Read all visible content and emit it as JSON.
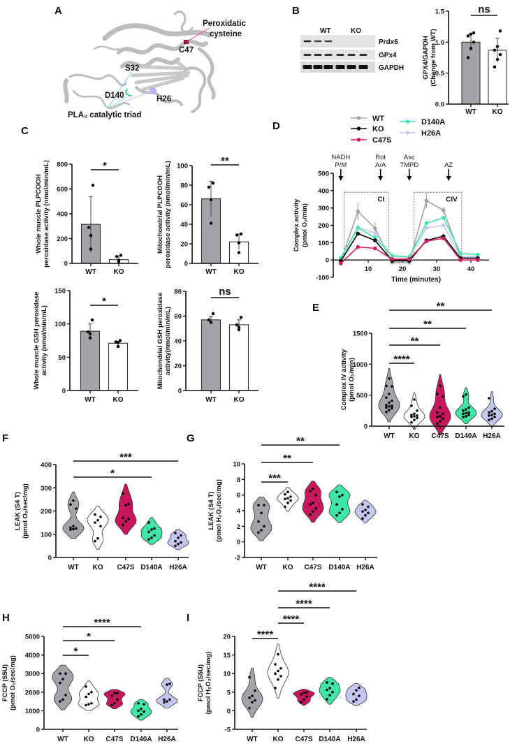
{
  "panel_labels": {
    "A": "A",
    "B": "B",
    "C": "C",
    "D": "D",
    "E": "E",
    "F": "F",
    "G": "G",
    "H": "H",
    "I": "I"
  },
  "colors": {
    "WT": "#a3a3a8",
    "KO": "#ffffff",
    "C47S": "#c8175d",
    "D140A": "#3fe6a5",
    "H26A": "#c6c6f4",
    "KO_line": "#000000"
  },
  "structure": {
    "peroxidatic_1": "Peroxidatic",
    "peroxidatic_2": "cysteine",
    "c47": "C47",
    "s32": "S32",
    "d140": "D140",
    "h26": "H26",
    "triad": "PLA₂ catalytic triad"
  },
  "blot": {
    "groups": [
      "WT",
      "KO"
    ],
    "rows": [
      "Prdx6",
      "GPx4",
      "GAPDH"
    ]
  },
  "chart_data": [
    {
      "id": "B",
      "type": "bar",
      "categories": [
        "WT",
        "KO"
      ],
      "values": [
        1.0,
        0.87
      ],
      "sd": [
        0.14,
        0.19
      ],
      "points": [
        [
          0.75,
          0.9,
          1.0,
          1.1,
          1.13,
          1.15
        ],
        [
          0.6,
          0.72,
          0.8,
          0.87,
          0.93,
          1.18
        ]
      ],
      "ylim": [
        0,
        1.5
      ],
      "yticks": [
        0,
        0.5,
        1.0,
        1.5
      ],
      "tick_labels": [
        "0.0",
        "0.5",
        "1.0",
        "1.5"
      ],
      "ylabel": [
        "GPX4/GAPDH",
        "(Change from WT)"
      ],
      "sig": [
        {
          "a": 0,
          "b": 1,
          "label": "ns"
        }
      ]
    },
    {
      "id": "C1",
      "type": "bar",
      "categories": [
        "WT",
        "KO"
      ],
      "values": [
        315,
        30
      ],
      "sd": [
        225,
        30
      ],
      "points": [
        [
          115,
          225,
          290,
          630
        ],
        [
          15,
          25,
          55,
          65
        ]
      ],
      "ylim": [
        0,
        800
      ],
      "yticks": [
        0,
        200,
        400,
        600,
        800
      ],
      "tick_labels": [
        "0",
        "200",
        "400",
        "600",
        "800"
      ],
      "ylabel": [
        "Whole muscle PLPCOOH",
        "peroxidase activity (nmol/min/mL)"
      ],
      "sig": [
        {
          "a": 0,
          "b": 1,
          "label": "*"
        }
      ]
    },
    {
      "id": "C2",
      "type": "bar",
      "categories": [
        "WT",
        "KO"
      ],
      "values": [
        66,
        22
      ],
      "sd": [
        18,
        8
      ],
      "points": [
        [
          41,
          65,
          78,
          82
        ],
        [
          11,
          21,
          29,
          30
        ]
      ],
      "ylim": [
        0,
        100
      ],
      "yticks": [
        0,
        20,
        40,
        60,
        80,
        100
      ],
      "tick_labels": [
        "0",
        "20",
        "40",
        "60",
        "80",
        "100"
      ],
      "ylabel": [
        "Mitochondrial PLPCOOH",
        "peroxidase activity (nmol/min/mL)"
      ],
      "sig": [
        {
          "a": 0,
          "b": 1,
          "label": "**"
        }
      ]
    },
    {
      "id": "C3",
      "type": "bar",
      "categories": [
        "WT",
        "KO"
      ],
      "values": [
        89,
        71
      ],
      "sd": [
        11,
        3
      ],
      "points": [
        [
          79,
          85,
          88,
          106
        ],
        [
          66,
          72,
          73,
          75
        ]
      ],
      "ylim": [
        0,
        150
      ],
      "yticks": [
        0,
        50,
        100,
        150
      ],
      "tick_labels": [
        "0",
        "50",
        "100",
        "150"
      ],
      "ylabel": [
        "Whole muscle GSH peroxidase",
        "activity (nmol/min/mL)"
      ],
      "sig": [
        {
          "a": 0,
          "b": 1,
          "label": "*"
        }
      ]
    },
    {
      "id": "C4",
      "type": "bar",
      "categories": [
        "WT",
        "KO"
      ],
      "values": [
        57,
        53
      ],
      "sd": [
        3,
        4
      ],
      "points": [
        [
          55,
          55,
          57,
          62
        ],
        [
          49,
          51,
          53,
          59
        ]
      ],
      "ylim": [
        0,
        80
      ],
      "yticks": [
        0,
        20,
        40,
        60,
        80
      ],
      "tick_labels": [
        "0",
        "20",
        "40",
        "60",
        "80"
      ],
      "ylabel": [
        "Mitochondrial GSH peroxidase",
        "activity(nmol/min/mL)"
      ],
      "sig": [
        {
          "a": 0,
          "b": 1,
          "label": "ns"
        }
      ]
    },
    {
      "id": "D",
      "type": "line",
      "xlabel": "Time (minutes)",
      "ylabel": [
        "Complex activity",
        "(pmol O₂/min)"
      ],
      "xlim": [
        0,
        45
      ],
      "ylim": [
        -100,
        500
      ],
      "xticks": [
        10,
        20,
        30,
        40
      ],
      "xtick_labels": [
        "10",
        "20",
        "30",
        "40"
      ],
      "yticks": [
        -100,
        0,
        100,
        200,
        300,
        400,
        500
      ],
      "ytick_labels": [
        "-100",
        "0",
        "100",
        "200",
        "300",
        "400",
        "500"
      ],
      "x": [
        2,
        7,
        12,
        17,
        22,
        27,
        32,
        37,
        42
      ],
      "series": [
        {
          "name": "WT",
          "color": "#a3a3a8",
          "values": [
            -5,
            280,
            183,
            -15,
            -15,
            342,
            287,
            15,
            15
          ],
          "err": [
            0,
            50,
            35,
            0,
            0,
            45,
            20,
            0,
            0
          ]
        },
        {
          "name": "KO",
          "color": "#000000",
          "values": [
            -5,
            152,
            113,
            -5,
            -5,
            113,
            137,
            10,
            10
          ],
          "err": [
            0,
            10,
            8,
            0,
            0,
            5,
            5,
            0,
            0
          ]
        },
        {
          "name": "C47S",
          "color": "#d01a64",
          "values": [
            -20,
            75,
            67,
            5,
            5,
            108,
            125,
            0,
            0
          ],
          "err": [
            0,
            0,
            0,
            0,
            0,
            0,
            0,
            0,
            0
          ]
        },
        {
          "name": "D140A",
          "color": "#3fe6a5",
          "values": [
            10,
            185,
            130,
            25,
            18,
            212,
            243,
            38,
            30
          ],
          "err": [
            0,
            0,
            0,
            0,
            0,
            0,
            0,
            0,
            0
          ]
        },
        {
          "name": "H26A",
          "color": "#c6c6f4",
          "values": [
            15,
            190,
            155,
            20,
            15,
            185,
            200,
            20,
            20
          ],
          "err": [
            0,
            0,
            0,
            0,
            0,
            0,
            0,
            0,
            0
          ]
        }
      ],
      "injections": [
        {
          "lines": [
            "NADH",
            "P/M"
          ],
          "t": 2
        },
        {
          "lines": [
            "Rot",
            "A/A"
          ],
          "t": 13.6
        },
        {
          "lines": [
            "Asc",
            "TMPD"
          ],
          "t": 22
        },
        {
          "lines": [
            "",
            "AZ"
          ],
          "t": 33.5
        }
      ],
      "boxes": [
        {
          "label": "CI",
          "t0": 3,
          "t1": 16
        },
        {
          "label": "CIV",
          "t0": 23.3,
          "t1": 37.3
        }
      ],
      "legend": "top"
    },
    {
      "id": "E",
      "type": "violin",
      "categories": [
        "WT",
        "KO",
        "C47S",
        "D140A",
        "H26A"
      ],
      "points": [
        [
          230,
          260,
          290,
          300,
          320,
          330,
          340,
          380,
          410,
          460,
          520,
          640,
          650,
          770
        ],
        [
          60,
          100,
          130,
          150,
          160,
          170,
          180,
          200,
          250,
          330,
          430
        ],
        [
          40,
          80,
          120,
          150,
          160,
          200,
          220,
          300,
          480,
          520,
          650
        ],
        [
          150,
          160,
          180,
          200,
          210,
          220,
          250,
          270,
          300,
          480,
          510
        ],
        [
          100,
          120,
          150,
          170,
          180,
          200,
          220,
          240,
          280,
          450
        ]
      ],
      "ylim": [
        0,
        1500
      ],
      "yticks": [
        0,
        500,
        1000,
        1500
      ],
      "tick_labels": [
        "0",
        "500",
        "1000",
        "1500"
      ],
      "ylabel": [
        "Complex IV activity",
        "(pmol O₂/min)"
      ],
      "sig": [
        {
          "a": 0,
          "b": 1,
          "label": "****"
        },
        {
          "a": 0,
          "b": 2,
          "label": "**"
        },
        {
          "a": 0,
          "b": 3,
          "label": "**"
        },
        {
          "a": 0,
          "b": 4,
          "label": "**"
        }
      ]
    },
    {
      "id": "F",
      "type": "violin",
      "categories": [
        "WT",
        "KO",
        "C47S",
        "D140A",
        "H26A"
      ],
      "points": [
        [
          120,
          122,
          125,
          128,
          135,
          210,
          228,
          245
        ],
        [
          70,
          82,
          135,
          150,
          160,
          175,
          185
        ],
        [
          140,
          155,
          165,
          170,
          225,
          230,
          275
        ],
        [
          78,
          85,
          95,
          110,
          120,
          125,
          150
        ],
        [
          50,
          58,
          65,
          70,
          85,
          95,
          105
        ]
      ],
      "ylim": [
        0,
        400
      ],
      "yticks": [
        0,
        100,
        200,
        300,
        400
      ],
      "tick_labels": [
        "0",
        "100",
        "200",
        "300",
        "400"
      ],
      "ylabel": [
        "LEAK (S4 T)",
        "(pmol O₂/sec/mg)"
      ],
      "sig": [
        {
          "a": 0,
          "b": 4,
          "label": "***"
        },
        {
          "a": 0,
          "b": 3,
          "label": "*"
        }
      ]
    },
    {
      "id": "G",
      "type": "violin",
      "categories": [
        "WT",
        "KO",
        "C47S",
        "D140A",
        "H26A"
      ],
      "points": [
        [
          1.2,
          1.5,
          2.0,
          2.6,
          3.7,
          4.7,
          4.7
        ],
        [
          4.5,
          5.0,
          5.3,
          5.5,
          5.6,
          5.8,
          6.1,
          6.4
        ],
        [
          3.5,
          3.9,
          4.3,
          4.8,
          5.0,
          6.0,
          6.5,
          6.8
        ],
        [
          3.4,
          3.7,
          4.2,
          4.8,
          5.8,
          6.0,
          6.4
        ],
        [
          3.0,
          3.4,
          3.7,
          3.9,
          4.1,
          4.5,
          4.8
        ]
      ],
      "ylim": [
        -2,
        10
      ],
      "yticks": [
        -2,
        0,
        2,
        4,
        6,
        8,
        10
      ],
      "tick_labels": [
        "-2",
        "0",
        "2",
        "4",
        "6",
        "8",
        "10"
      ],
      "ylabel": [
        "LEAK (S4 T)",
        "(pmol H₂O₂/sec/mg)"
      ],
      "sig": [
        {
          "a": 0,
          "b": 3,
          "label": "**"
        },
        {
          "a": 0,
          "b": 2,
          "label": "**"
        },
        {
          "a": 0,
          "b": 1,
          "label": "***"
        }
      ]
    },
    {
      "id": "H",
      "type": "violin",
      "categories": [
        "WT",
        "KO",
        "C47S",
        "D140A",
        "H26A"
      ],
      "points": [
        [
          1500,
          1600,
          1850,
          2500,
          2700,
          3000,
          3000
        ],
        [
          1300,
          1350,
          1400,
          1750,
          1900,
          2000,
          2300
        ],
        [
          1300,
          1400,
          1600,
          1800,
          1950,
          1950
        ],
        [
          700,
          800,
          950,
          1000,
          1100,
          1350,
          1400
        ],
        [
          1450,
          1500,
          1600,
          1600,
          2400,
          2450
        ]
      ],
      "ylim": [
        0,
        5000
      ],
      "yticks": [
        0,
        1000,
        2000,
        3000,
        4000,
        5000
      ],
      "tick_labels": [
        "0",
        "1000",
        "2000",
        "3000",
        "4000",
        "5000"
      ],
      "ylabel": [
        "FCCP (S5U)",
        "(pmol O₂/sec/mg)"
      ],
      "sig": [
        {
          "a": 0,
          "b": 3,
          "label": "****"
        },
        {
          "a": 0,
          "b": 2,
          "label": "*"
        },
        {
          "a": 0,
          "b": 1,
          "label": "*"
        }
      ]
    },
    {
      "id": "I",
      "type": "violin",
      "categories": [
        "WT",
        "KO",
        "C47S",
        "D140A",
        "H26A"
      ],
      "points": [
        [
          0.7,
          2.3,
          2.8,
          3.5,
          4.0,
          5.4,
          9.0
        ],
        [
          6.1,
          8.4,
          9.3,
          10,
          10.7,
          11.4,
          12.5,
          15.2
        ],
        [
          2.3,
          3.0,
          3.8,
          4.4,
          4.8,
          5.0
        ],
        [
          3.1,
          4.2,
          5.0,
          5.6,
          6.1,
          7.3,
          7.6
        ],
        [
          2.5,
          3.0,
          4.0,
          4.5,
          5.5,
          6.2
        ]
      ],
      "ylim": [
        -5,
        20
      ],
      "yticks": [
        -5,
        0,
        5,
        10,
        15,
        20
      ],
      "tick_labels": [
        "-5",
        "0",
        "5",
        "10",
        "15",
        "20"
      ],
      "ylabel": [
        "FCCP (S5U)",
        "(pmol H₂O₂/sec/mg)"
      ],
      "sig": [
        {
          "a": 1,
          "b": 4,
          "label": "****"
        },
        {
          "a": 1,
          "b": 3,
          "label": "****"
        },
        {
          "a": 1,
          "b": 2,
          "label": "****"
        },
        {
          "a": 0,
          "b": 1,
          "label": "****"
        }
      ]
    }
  ]
}
